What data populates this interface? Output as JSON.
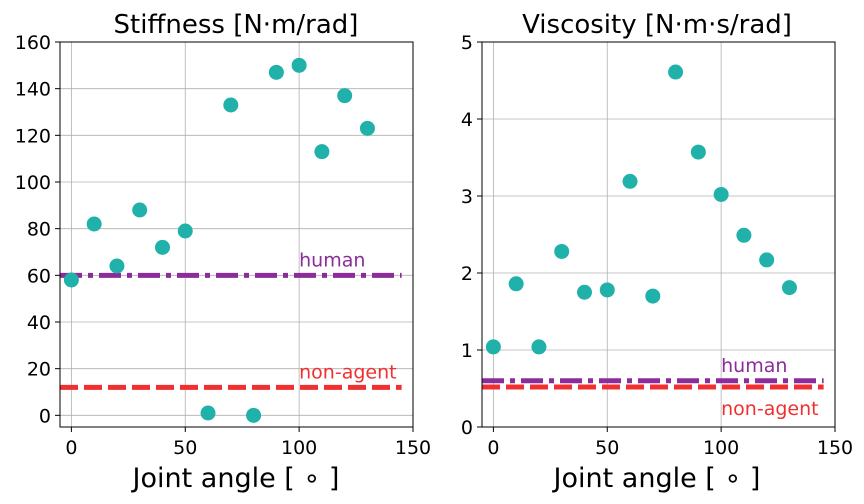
{
  "figure": {
    "xlabel": "Joint angle [ ∘ ]"
  },
  "chart_data": [
    {
      "type": "scatter",
      "title": "Stiffness [N·m/rad]",
      "xlabel": "Joint angle [ ∘ ]",
      "ylabel": "",
      "xlim": [
        -5,
        150
      ],
      "ylim": [
        -5,
        160
      ],
      "xticks": [
        0,
        50,
        100,
        150
      ],
      "yticks": [
        0,
        20,
        40,
        60,
        80,
        100,
        120,
        140,
        160
      ],
      "grid": true,
      "points": {
        "name": "agent",
        "color": "#20b2aa",
        "x": [
          0,
          10,
          20,
          30,
          40,
          50,
          60,
          70,
          80,
          90,
          100,
          110,
          120,
          130
        ],
        "y": [
          58,
          82,
          64,
          88,
          72,
          79,
          1,
          133,
          0,
          147,
          150,
          113,
          137,
          123
        ]
      },
      "reference_lines": [
        {
          "name": "human",
          "label": "human",
          "y": 60,
          "style": "dashdot",
          "color": "#8b2c9a",
          "x_range": [
            -5,
            145
          ]
        },
        {
          "name": "non-agent",
          "label": "non-agent",
          "y": 12,
          "style": "dashed",
          "color": "#f03030",
          "x_range": [
            -5,
            145
          ]
        }
      ]
    },
    {
      "type": "scatter",
      "title": "Viscosity [N·m·s/rad]",
      "xlabel": "Joint angle [ ∘ ]",
      "ylabel": "",
      "xlim": [
        -5,
        150
      ],
      "ylim": [
        0,
        5
      ],
      "xticks": [
        0,
        50,
        100,
        150
      ],
      "yticks": [
        0,
        1,
        2,
        3,
        4,
        5
      ],
      "grid": true,
      "points": {
        "name": "agent",
        "color": "#20b2aa",
        "x": [
          0,
          10,
          20,
          30,
          40,
          50,
          60,
          70,
          80,
          90,
          100,
          110,
          120,
          130
        ],
        "y": [
          1.04,
          1.86,
          1.04,
          2.28,
          1.75,
          1.78,
          3.19,
          1.7,
          4.61,
          3.57,
          3.02,
          2.49,
          2.17,
          1.81
        ]
      },
      "reference_lines": [
        {
          "name": "human",
          "label": "human",
          "y": 0.6,
          "style": "dashdot",
          "color": "#8b2c9a",
          "x_range": [
            -5,
            145
          ]
        },
        {
          "name": "non-agent",
          "label": "non-agent",
          "y": 0.52,
          "style": "dashed",
          "color": "#f03030",
          "x_range": [
            -5,
            145
          ]
        }
      ]
    }
  ]
}
